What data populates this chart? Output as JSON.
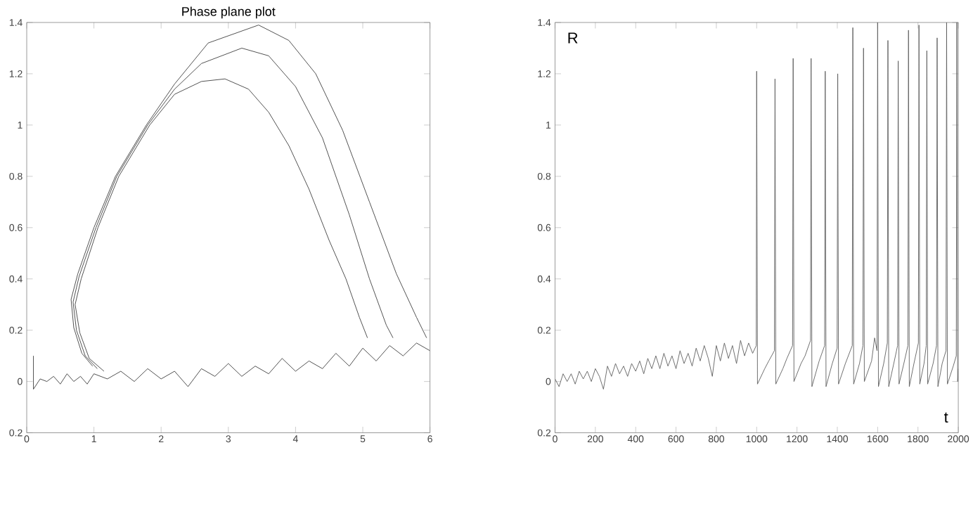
{
  "chart_data": [
    {
      "type": "line",
      "title": "Phase plane plot",
      "xlim": [
        0,
        6
      ],
      "ylim": [
        -0.2,
        1.4
      ],
      "xticks": [
        0,
        1,
        2,
        3,
        4,
        5,
        6
      ],
      "yticks": [
        {
          "value": -0.2,
          "label": "0.2"
        },
        0,
        0.2,
        0.4,
        0.6,
        0.8,
        1,
        1.2,
        1.4
      ],
      "series": [
        {
          "color": "#404040",
          "x": [
            0.1,
            0.1,
            0.2,
            0.3,
            0.4,
            0.5,
            0.6,
            0.7,
            0.8,
            0.9,
            1.0,
            1.2,
            1.4,
            1.6,
            1.8,
            2.0,
            2.2,
            2.4,
            2.6,
            2.8,
            3.0,
            3.2,
            3.4,
            3.6,
            3.8,
            4.0,
            4.2,
            4.4,
            4.6,
            4.8,
            5.0,
            5.2,
            5.4,
            5.6,
            5.8,
            6.0
          ],
          "values": [
            0.1,
            -0.03,
            0.01,
            0.0,
            0.02,
            -0.01,
            0.03,
            0.0,
            0.02,
            -0.01,
            0.03,
            0.01,
            0.04,
            0.0,
            0.05,
            0.01,
            0.04,
            -0.02,
            0.05,
            0.02,
            0.07,
            0.02,
            0.06,
            0.03,
            0.09,
            0.04,
            0.08,
            0.05,
            0.11,
            0.06,
            0.13,
            0.08,
            0.14,
            0.1,
            0.15,
            0.12
          ]
        },
        {
          "color": "#404040",
          "x": [
            1.15,
            0.93,
            0.79,
            0.72,
            0.81,
            1.06,
            1.37,
            1.83,
            2.2,
            2.6,
            2.95,
            3.3,
            3.6,
            3.9,
            4.2,
            4.5,
            4.75,
            4.95,
            5.07
          ],
          "values": [
            0.04,
            0.09,
            0.19,
            0.3,
            0.4,
            0.6,
            0.8,
            1.0,
            1.12,
            1.17,
            1.18,
            1.14,
            1.05,
            0.92,
            0.75,
            0.55,
            0.4,
            0.25,
            0.17
          ]
        },
        {
          "color": "#404040",
          "x": [
            1.05,
            0.87,
            0.74,
            0.69,
            0.78,
            1.03,
            1.34,
            1.8,
            2.2,
            2.6,
            3.2,
            3.6,
            4.0,
            4.4,
            4.8,
            5.1,
            5.35,
            5.45
          ],
          "values": [
            0.05,
            0.1,
            0.2,
            0.31,
            0.41,
            0.6,
            0.8,
            1.0,
            1.14,
            1.24,
            1.3,
            1.27,
            1.15,
            0.95,
            0.65,
            0.4,
            0.22,
            0.17
          ]
        },
        {
          "color": "#404040",
          "x": [
            0.98,
            0.82,
            0.7,
            0.66,
            0.76,
            1.0,
            1.32,
            1.78,
            2.2,
            2.7,
            3.45,
            3.9,
            4.3,
            4.7,
            5.1,
            5.5,
            5.8,
            5.95
          ],
          "values": [
            0.06,
            0.11,
            0.21,
            0.32,
            0.42,
            0.6,
            0.8,
            1.0,
            1.16,
            1.32,
            1.39,
            1.33,
            1.2,
            0.98,
            0.7,
            0.42,
            0.25,
            0.17
          ]
        }
      ]
    },
    {
      "type": "line",
      "xlabel": "t",
      "ylabel": "R",
      "xlim": [
        0,
        2000
      ],
      "ylim": [
        -0.2,
        1.4
      ],
      "xticks": [
        0,
        200,
        400,
        600,
        800,
        1000,
        1200,
        1400,
        1600,
        1800,
        2000
      ],
      "yticks": [
        {
          "value": -0.2,
          "label": "0.2"
        },
        0,
        0.2,
        0.4,
        0.6,
        0.8,
        1,
        1.2,
        1.4
      ],
      "series": [
        {
          "color": "#606060",
          "x": [
            0,
            20,
            40,
            60,
            80,
            100,
            120,
            140,
            160,
            180,
            200,
            220,
            240,
            260,
            280,
            300,
            320,
            340,
            360,
            380,
            400,
            420,
            440,
            460,
            480,
            500,
            520,
            540,
            560,
            580,
            600,
            620,
            640,
            660,
            680,
            700,
            720,
            740,
            760,
            780,
            800,
            820,
            840,
            860,
            880,
            900,
            920,
            940,
            960,
            980,
            998,
            1000,
            1004,
            1040,
            1060,
            1088,
            1091,
            1095,
            1130,
            1150,
            1178,
            1181,
            1185,
            1220,
            1240,
            1267,
            1270,
            1274,
            1310,
            1337,
            1340,
            1344,
            1375,
            1399,
            1402,
            1406,
            1440,
            1474,
            1477,
            1481,
            1510,
            1527,
            1530,
            1534,
            1570,
            1585,
            1597,
            1600,
            1604,
            1630,
            1648,
            1651,
            1655,
            1680,
            1699,
            1702,
            1706,
            1730,
            1750,
            1753,
            1757,
            1780,
            1802,
            1805,
            1809,
            1830,
            1841,
            1844,
            1848,
            1875,
            1892,
            1895,
            1899,
            1920,
            1939,
            1942,
            1946,
            1975,
            1990,
            1993,
            1997,
            2000
          ],
          "values": [
            0.01,
            -0.02,
            0.03,
            0.0,
            0.03,
            -0.01,
            0.04,
            0.01,
            0.04,
            0.0,
            0.05,
            0.02,
            -0.03,
            0.06,
            0.02,
            0.07,
            0.03,
            0.06,
            0.02,
            0.07,
            0.04,
            0.08,
            0.03,
            0.09,
            0.05,
            0.1,
            0.05,
            0.11,
            0.06,
            0.1,
            0.05,
            0.12,
            0.07,
            0.11,
            0.06,
            0.13,
            0.08,
            0.14,
            0.09,
            0.02,
            0.14,
            0.08,
            0.15,
            0.09,
            0.14,
            0.07,
            0.16,
            0.1,
            0.15,
            0.11,
            0.14,
            1.21,
            -0.01,
            0.05,
            0.08,
            0.12,
            1.18,
            -0.01,
            0.05,
            0.09,
            0.14,
            1.26,
            0.0,
            0.07,
            0.1,
            0.16,
            1.26,
            -0.02,
            0.08,
            0.14,
            1.21,
            -0.02,
            0.07,
            0.13,
            1.2,
            -0.01,
            0.07,
            0.14,
            1.38,
            -0.01,
            0.07,
            0.14,
            1.3,
            0.0,
            0.08,
            0.17,
            0.12,
            1.4,
            -0.02,
            0.07,
            0.15,
            1.33,
            -0.02,
            0.07,
            0.14,
            1.25,
            -0.01,
            0.07,
            0.14,
            1.37,
            -0.02,
            0.07,
            0.15,
            1.39,
            -0.01,
            0.07,
            0.14,
            1.29,
            -0.01,
            0.07,
            0.14,
            1.34,
            -0.02,
            0.07,
            0.12,
            1.4,
            -0.01,
            0.06,
            0.1,
            1.4,
            0.0,
            0.05
          ]
        }
      ]
    }
  ]
}
